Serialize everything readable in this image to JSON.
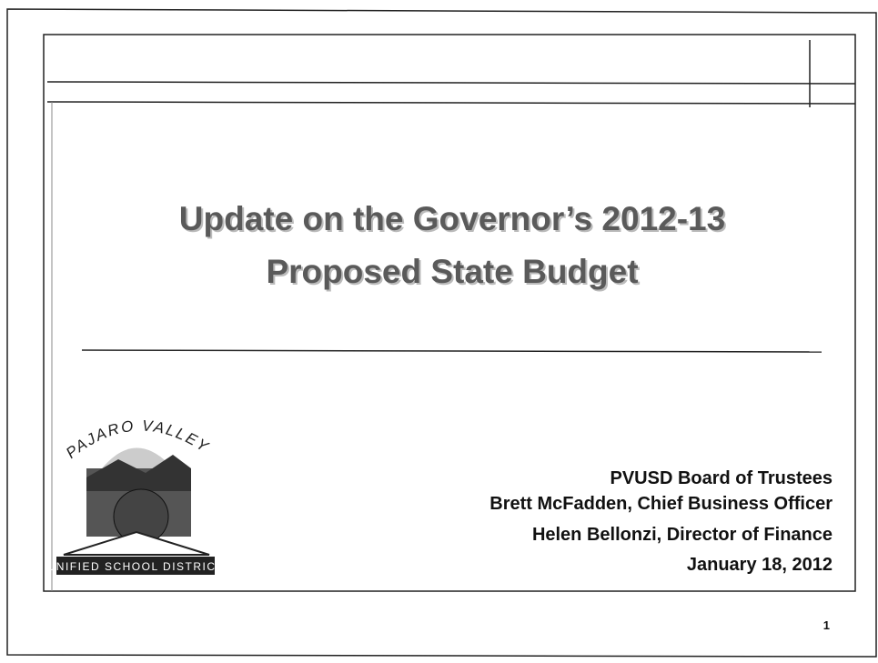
{
  "title": {
    "lines": [
      "Update on the Governor’s 2012-13",
      "Proposed State Budget"
    ]
  },
  "presenters": [
    "PVUSD Board of Trustees",
    "Brett McFadden, Chief Business Officer",
    "Helen Bellonzi, Director of Finance",
    "January 18, 2012"
  ],
  "logo": {
    "top": "PAJARO VALLEY",
    "bottom": "UNIFIED SCHOOL DISTRICT"
  },
  "page_number": "1"
}
